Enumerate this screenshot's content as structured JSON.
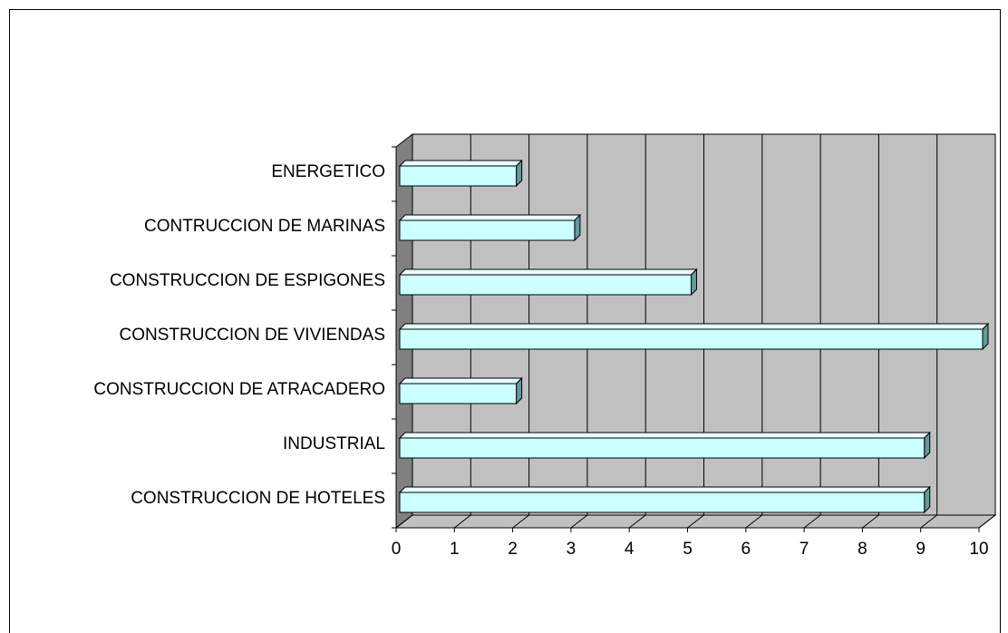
{
  "chart_data": {
    "type": "bar3d_horizontal",
    "categories": [
      "ENERGETICO",
      "CONTRUCCION DE MARINAS",
      "CONSTRUCCION DE ESPIGONES",
      "CONSTRUCCION DE VIVIENDAS",
      "CONSTRUCCION DE ATRACADERO",
      "INDUSTRIAL",
      "CONSTRUCCION DE HOTELES"
    ],
    "values": [
      2,
      3,
      5,
      10,
      2,
      9,
      9
    ],
    "color": "#ccffff",
    "xlim": [
      0,
      10
    ],
    "xticks": [
      0,
      1,
      2,
      3,
      4,
      5,
      6,
      7,
      8,
      9,
      10
    ],
    "grid": true
  }
}
